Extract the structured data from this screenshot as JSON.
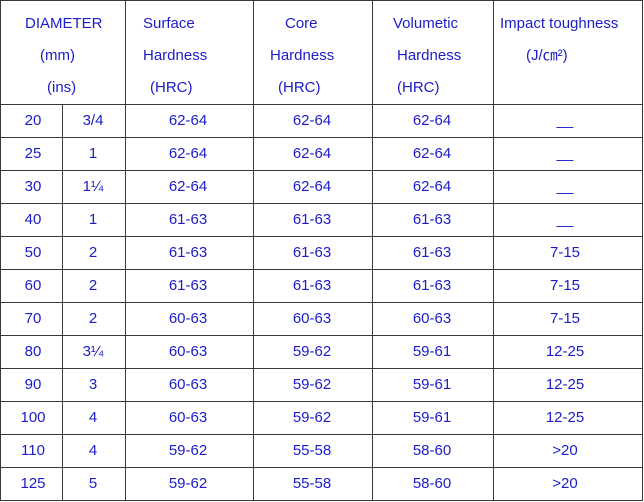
{
  "table": {
    "header": [
      {
        "lines": [
          "DIAMETER",
          "(mm)",
          "(ins)"
        ]
      },
      {
        "lines": [
          "Surface",
          "Hardness",
          "(HRC)"
        ]
      },
      {
        "lines": [
          "Core",
          "Hardness",
          "(HRC)"
        ]
      },
      {
        "lines": [
          "Volumetic",
          "Hardness",
          "(HRC)"
        ]
      },
      {
        "lines": [
          "Impact toughness",
          "(J/㎝²)"
        ]
      }
    ],
    "rows": [
      [
        "20",
        "3/4",
        "62-64",
        "62-64",
        "62-64",
        "__"
      ],
      [
        "25",
        "1",
        "62-64",
        "62-64",
        "62-64",
        "__"
      ],
      [
        "30",
        "1¼",
        "62-64",
        "62-64",
        "62-64",
        "__"
      ],
      [
        "40",
        "1",
        "61-63",
        "61-63",
        "61-63",
        "__"
      ],
      [
        "50",
        "2",
        "61-63",
        "61-63",
        "61-63",
        "7-15"
      ],
      [
        "60",
        "2",
        "61-63",
        "61-63",
        "61-63",
        "7-15"
      ],
      [
        "70",
        "2",
        "60-63",
        "60-63",
        "60-63",
        "7-15"
      ],
      [
        "80",
        "3¼",
        "60-63",
        "59-62",
        "59-61",
        "12-25"
      ],
      [
        "90",
        "3",
        "60-63",
        "59-62",
        "59-61",
        "12-25"
      ],
      [
        "100",
        "4",
        "60-63",
        "59-62",
        "59-61",
        "12-25"
      ],
      [
        "110",
        "4",
        "59-62",
        "55-58",
        "58-60",
        ">20"
      ],
      [
        "125",
        "5",
        "59-62",
        "55-58",
        "58-60",
        ">20"
      ]
    ]
  }
}
